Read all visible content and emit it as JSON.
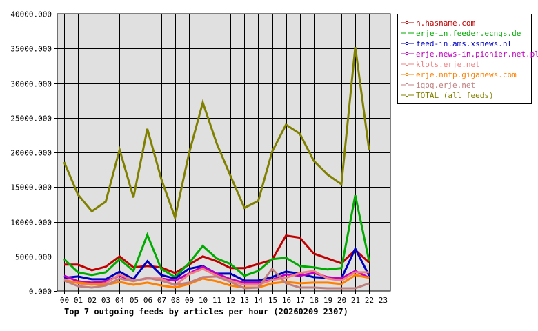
{
  "chart_data": {
    "type": "line",
    "title": "Top 7 outgoing feeds by articles per hour (20260209 2307)",
    "xlabel": "",
    "ylabel": "",
    "ylim": [
      0,
      40000
    ],
    "yticks": [
      "0.000",
      "5000.000",
      "10000.000",
      "15000.000",
      "20000.000",
      "25000.000",
      "30000.000",
      "35000.000",
      "40000.000"
    ],
    "x": [
      "00",
      "01",
      "02",
      "03",
      "04",
      "05",
      "06",
      "07",
      "08",
      "09",
      "10",
      "11",
      "12",
      "13",
      "14",
      "15",
      "16",
      "17",
      "18",
      "19",
      "20",
      "21",
      "22",
      "23"
    ],
    "grid": true,
    "legend_position": "right",
    "series": [
      {
        "name": "n.hasname.com",
        "color": "#c00000",
        "values": [
          3800,
          3800,
          3000,
          3500,
          5000,
          3400,
          3600,
          3400,
          2600,
          3800,
          5000,
          4300,
          3300,
          3300,
          3900,
          4500,
          8000,
          7700,
          5400,
          4700,
          4000,
          5900,
          4100
        ]
      },
      {
        "name": "erje-in.feeder.ecngs.de",
        "color": "#00aa00",
        "values": [
          4600,
          2700,
          2300,
          2700,
          4600,
          2900,
          8100,
          3200,
          2000,
          4000,
          6500,
          4700,
          3900,
          2200,
          2900,
          4600,
          4800,
          3600,
          3400,
          3100,
          3300,
          13800,
          4300
        ]
      },
      {
        "name": "feed-in.ams.xsnews.nl",
        "color": "#0000c0",
        "values": [
          1900,
          2100,
          1700,
          1700,
          2800,
          1700,
          4300,
          2300,
          1800,
          3200,
          3600,
          2500,
          2500,
          1500,
          1500,
          2000,
          2800,
          2500,
          2000,
          1900,
          1800,
          6100,
          2200
        ]
      },
      {
        "name": "erje.news-in.pionier.net.pl",
        "color": "#c000c0",
        "values": [
          2200,
          1400,
          1200,
          1400,
          2200,
          1500,
          1800,
          1800,
          1500,
          2500,
          3500,
          2500,
          1700,
          1200,
          1200,
          1600,
          2400,
          2200,
          2600,
          2000,
          1800,
          2900,
          1900
        ]
      },
      {
        "name": "klots.erje.net",
        "color": "#f08080",
        "values": [
          1700,
          1100,
          900,
          1100,
          2400,
          1500,
          1800,
          1800,
          800,
          2400,
          3200,
          2200,
          1500,
          900,
          900,
          1600,
          1900,
          2600,
          2900,
          1800,
          1500,
          2700,
          2700
        ]
      },
      {
        "name": "erje.nntp.giganews.com",
        "color": "#ff8000",
        "values": [
          1500,
          1200,
          1000,
          900,
          1300,
          900,
          1200,
          800,
          500,
          1000,
          1800,
          1400,
          800,
          500,
          500,
          1100,
          1300,
          1100,
          1200,
          1200,
          1000,
          2300,
          1900
        ]
      },
      {
        "name": "iqoq.erje.net",
        "color": "#c08080",
        "values": [
          1500,
          700,
          500,
          800,
          1800,
          1400,
          1900,
          1500,
          900,
          1200,
          2000,
          2100,
          1300,
          400,
          500,
          3200,
          1100,
          500,
          500,
          400,
          400,
          400,
          1100
        ]
      },
      {
        "name": "TOTAL (all feeds)",
        "color": "#808000",
        "values": [
          18600,
          13900,
          11500,
          12900,
          20400,
          13500,
          23400,
          16200,
          10600,
          19800,
          27200,
          21300,
          16600,
          12000,
          13000,
          20100,
          24000,
          22700,
          18800,
          16800,
          15400,
          35200,
          20300
        ]
      }
    ]
  }
}
